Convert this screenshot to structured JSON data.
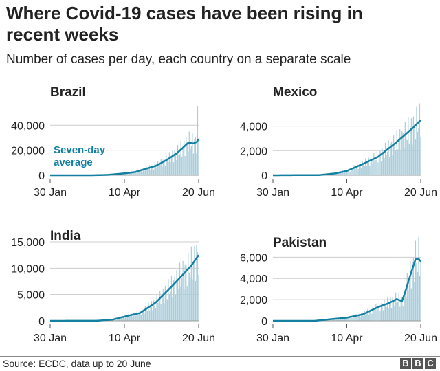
{
  "title": "Where Covid-19 cases have been rising in recent weeks",
  "subtitle": "Number of cases per day, each country on a separate scale",
  "source": "Source: ECDC, data up to 20 June",
  "logo": "BBC",
  "colors": {
    "line": "#1380a1",
    "bars": "#a9cdda",
    "grid": "#cccccc",
    "text": "#222222"
  },
  "chart_data": [
    {
      "type": "bar+line",
      "title": "Brazil",
      "annotation": "Seven-day average",
      "xlim": [
        "2020-01-30",
        "2020-06-20"
      ],
      "x_ticks": [
        "30 Jan",
        "10 Apr",
        "20 Jun"
      ],
      "ylim": [
        0,
        55000
      ],
      "y_ticks": [
        0,
        20000,
        40000
      ],
      "y_tick_labels": [
        "0",
        "20,000",
        "40,000"
      ],
      "seven_day_average": [
        [
          "2020-01-30",
          0
        ],
        [
          "2020-03-10",
          0
        ],
        [
          "2020-03-25",
          300
        ],
        [
          "2020-04-10",
          1500
        ],
        [
          "2020-04-20",
          2500
        ],
        [
          "2020-04-30",
          5000
        ],
        [
          "2020-05-10",
          7500
        ],
        [
          "2020-05-20",
          12000
        ],
        [
          "2020-05-30",
          17500
        ],
        [
          "2020-06-05",
          22000
        ],
        [
          "2020-06-10",
          26000
        ],
        [
          "2020-06-15",
          25500
        ],
        [
          "2020-06-18",
          26500
        ],
        [
          "2020-06-20",
          29000
        ]
      ],
      "peak_day": [
        "2020-06-19",
        55000
      ]
    },
    {
      "type": "bar+line",
      "title": "Mexico",
      "xlim": [
        "2020-01-30",
        "2020-06-20"
      ],
      "x_ticks": [
        "30 Jan",
        "10 Apr",
        "20 Jun"
      ],
      "ylim": [
        0,
        5600
      ],
      "y_ticks": [
        0,
        2000,
        4000
      ],
      "y_tick_labels": [
        "0",
        "2,000",
        "4,000"
      ],
      "seven_day_average": [
        [
          "2020-01-30",
          0
        ],
        [
          "2020-03-15",
          20
        ],
        [
          "2020-03-30",
          150
        ],
        [
          "2020-04-10",
          350
        ],
        [
          "2020-04-25",
          900
        ],
        [
          "2020-05-10",
          1500
        ],
        [
          "2020-05-25",
          2500
        ],
        [
          "2020-06-05",
          3300
        ],
        [
          "2020-06-13",
          3900
        ],
        [
          "2020-06-20",
          4500
        ]
      ]
    },
    {
      "type": "bar+line",
      "title": "India",
      "xlim": [
        "2020-01-30",
        "2020-06-20"
      ],
      "x_ticks": [
        "30 Jan",
        "10 Apr",
        "20 Jun"
      ],
      "ylim": [
        0,
        15000
      ],
      "y_ticks": [
        0,
        5000,
        10000,
        15000
      ],
      "y_tick_labels": [
        "0",
        "5,000",
        "10,000",
        "15,000"
      ],
      "seven_day_average": [
        [
          "2020-01-30",
          0
        ],
        [
          "2020-03-15",
          20
        ],
        [
          "2020-03-30",
          250
        ],
        [
          "2020-04-10",
          800
        ],
        [
          "2020-04-25",
          1500
        ],
        [
          "2020-05-10",
          3500
        ],
        [
          "2020-05-25",
          6500
        ],
        [
          "2020-06-05",
          8800
        ],
        [
          "2020-06-13",
          10500
        ],
        [
          "2020-06-20",
          12500
        ]
      ]
    },
    {
      "type": "bar+line",
      "title": "Pakistan",
      "xlim": [
        "2020-01-30",
        "2020-06-20"
      ],
      "x_ticks": [
        "30 Jan",
        "10 Apr",
        "20 Jun"
      ],
      "ylim": [
        0,
        6800
      ],
      "y_ticks": [
        0,
        2000,
        4000,
        6000
      ],
      "y_tick_labels": [
        "0",
        "2,000",
        "4,000",
        "6,000"
      ],
      "seven_day_average": [
        [
          "2020-01-30",
          0
        ],
        [
          "2020-03-10",
          0
        ],
        [
          "2020-03-25",
          150
        ],
        [
          "2020-04-10",
          300
        ],
        [
          "2020-04-25",
          600
        ],
        [
          "2020-05-10",
          1300
        ],
        [
          "2020-05-20",
          1650
        ],
        [
          "2020-05-28",
          2050
        ],
        [
          "2020-06-02",
          1850
        ],
        [
          "2020-06-05",
          2700
        ],
        [
          "2020-06-10",
          4300
        ],
        [
          "2020-06-15",
          5800
        ],
        [
          "2020-06-18",
          5850
        ],
        [
          "2020-06-20",
          5600
        ]
      ]
    }
  ]
}
